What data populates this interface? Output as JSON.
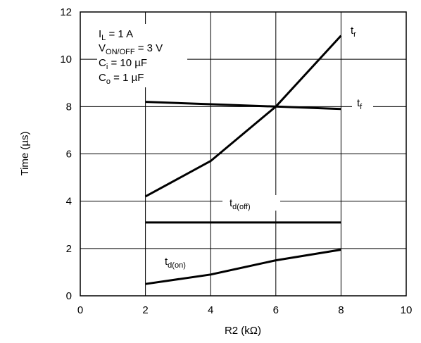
{
  "chart_data": {
    "type": "line",
    "xlabel": "R2 (kΩ)",
    "ylabel": "Time (µs)",
    "xlim": [
      0,
      10
    ],
    "ylim": [
      0,
      12
    ],
    "x_ticks": [
      "0",
      "2",
      "4",
      "6",
      "8",
      "10"
    ],
    "y_ticks": [
      "0",
      "2",
      "4",
      "6",
      "8",
      "10",
      "12"
    ],
    "grid": true,
    "conditions": [
      {
        "main": "I",
        "sub": "L",
        "rest": " = 1 A"
      },
      {
        "main": "V",
        "sub": "ON/OFF",
        "rest": " = 3 V"
      },
      {
        "main": "C",
        "sub": "i",
        "rest": " = 10 µF"
      },
      {
        "main": "C",
        "sub": "o",
        "rest": " = 1 µF"
      }
    ],
    "series": [
      {
        "main": "t",
        "sub": "r",
        "x": [
          2,
          4,
          6,
          8
        ],
        "y": [
          4.2,
          5.7,
          8.0,
          11.0
        ]
      },
      {
        "main": "t",
        "sub": "f",
        "x": [
          2,
          4,
          6,
          8
        ],
        "y": [
          8.2,
          8.1,
          8.0,
          7.9
        ]
      },
      {
        "main": "t",
        "sub": "d(off)",
        "x": [
          2,
          4,
          6,
          8
        ],
        "y": [
          3.1,
          3.1,
          3.1,
          3.1
        ]
      },
      {
        "main": "t",
        "sub": "d(on)",
        "x": [
          2,
          4,
          6,
          8
        ],
        "y": [
          0.5,
          0.9,
          1.5,
          1.95
        ]
      }
    ]
  }
}
